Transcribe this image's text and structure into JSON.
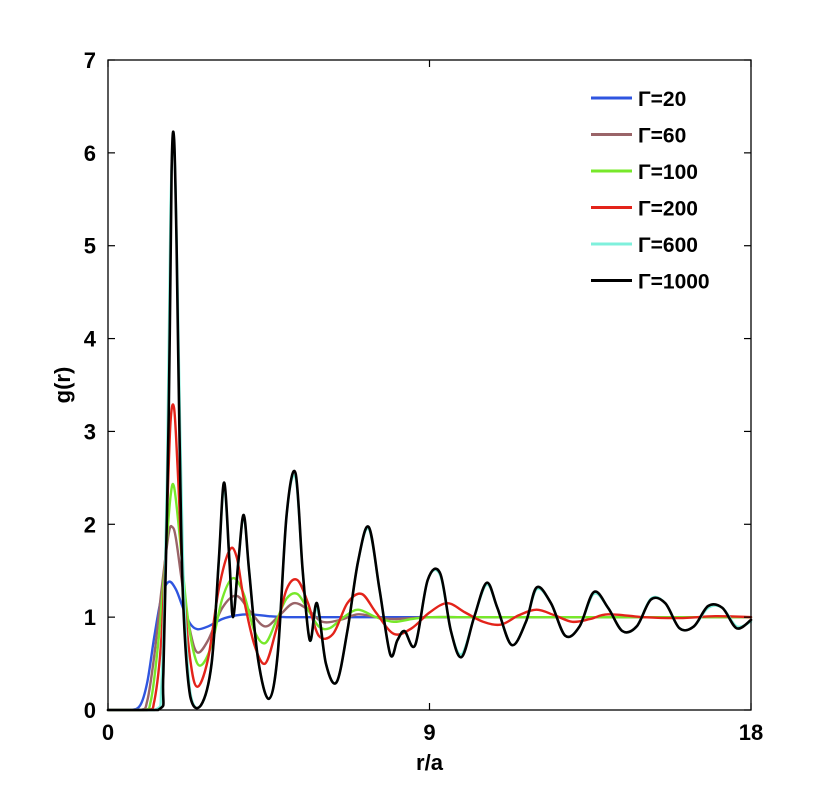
{
  "chart_data": {
    "type": "line",
    "title": "",
    "xlabel": "r/a",
    "ylabel": "g(r)",
    "xlim": [
      0,
      18
    ],
    "ylim": [
      0,
      7
    ],
    "xticks": [
      0,
      9,
      18
    ],
    "yticks": [
      0,
      1,
      2,
      3,
      4,
      5,
      6,
      7
    ],
    "grid": false,
    "legend_position": "top-right",
    "series": [
      {
        "name": "Γ=20",
        "color": "#2f55e0",
        "x": [
          0,
          0.6,
          0.9,
          1.1,
          1.3,
          1.5,
          1.7,
          1.9,
          2.1,
          2.3,
          2.5,
          2.8,
          3.2,
          3.6,
          4.0,
          4.5,
          5.0,
          6.0,
          7.0,
          9.0,
          12.0,
          15.0,
          18.0
        ],
        "y": [
          0,
          0,
          0.05,
          0.3,
          0.8,
          1.22,
          1.38,
          1.3,
          1.1,
          0.93,
          0.87,
          0.9,
          0.98,
          1.02,
          1.03,
          1.01,
          1.0,
          1.0,
          1.0,
          1.0,
          1.0,
          1.0,
          1.0
        ]
      },
      {
        "name": "Γ=60",
        "color": "#9a6468",
        "x": [
          0,
          0.9,
          1.1,
          1.3,
          1.5,
          1.7,
          1.8,
          1.9,
          2.1,
          2.3,
          2.5,
          2.8,
          3.2,
          3.6,
          4.0,
          4.4,
          4.8,
          5.2,
          5.6,
          6.0,
          6.5,
          7.0,
          7.5,
          8.0,
          9.0,
          10.0,
          12.0,
          15.0,
          18.0
        ],
        "y": [
          0,
          0,
          0.1,
          0.6,
          1.3,
          1.9,
          1.97,
          1.85,
          1.3,
          0.85,
          0.62,
          0.75,
          1.1,
          1.23,
          1.05,
          0.9,
          1.02,
          1.15,
          1.08,
          0.95,
          0.97,
          1.03,
          1.0,
          0.98,
          1.0,
          1.0,
          1.0,
          1.0,
          1.0
        ]
      },
      {
        "name": "Γ=100",
        "color": "#77e82a",
        "x": [
          0,
          1.0,
          1.2,
          1.4,
          1.6,
          1.75,
          1.85,
          2.0,
          2.2,
          2.4,
          2.6,
          2.9,
          3.2,
          3.5,
          3.8,
          4.1,
          4.4,
          4.7,
          5.0,
          5.3,
          5.6,
          5.9,
          6.2,
          6.6,
          7.0,
          7.5,
          8.0,
          8.5,
          9.0,
          10.0,
          12.0,
          15.0,
          18.0
        ],
        "y": [
          0,
          0,
          0.1,
          0.7,
          1.6,
          2.3,
          2.4,
          1.9,
          1.1,
          0.62,
          0.48,
          0.7,
          1.2,
          1.42,
          1.25,
          0.85,
          0.72,
          0.95,
          1.2,
          1.25,
          1.08,
          0.9,
          0.88,
          1.0,
          1.08,
          1.0,
          0.95,
          0.98,
          1.0,
          1.0,
          1.0,
          1.0,
          1.0
        ]
      },
      {
        "name": "Γ=200",
        "color": "#e3231a",
        "x": [
          0,
          1.1,
          1.3,
          1.5,
          1.65,
          1.75,
          1.85,
          1.95,
          2.1,
          2.3,
          2.5,
          2.8,
          3.1,
          3.4,
          3.6,
          3.8,
          4.1,
          4.4,
          4.7,
          5.0,
          5.3,
          5.6,
          5.9,
          6.3,
          6.7,
          7.1,
          7.5,
          8.0,
          8.5,
          9.0,
          9.5,
          10.0,
          10.5,
          11.0,
          11.5,
          12.0,
          12.5,
          13.0,
          13.5,
          14.0,
          15.0,
          16.0,
          17.0,
          18.0
        ],
        "y": [
          0,
          0,
          0.1,
          0.8,
          2.1,
          3.1,
          3.25,
          2.6,
          1.4,
          0.55,
          0.25,
          0.55,
          1.3,
          1.72,
          1.65,
          1.2,
          0.7,
          0.5,
          0.85,
          1.3,
          1.4,
          1.15,
          0.8,
          0.82,
          1.15,
          1.25,
          1.05,
          0.82,
          0.88,
          1.05,
          1.15,
          1.05,
          0.95,
          0.92,
          1.02,
          1.08,
          1.02,
          0.95,
          0.98,
          1.03,
          1.0,
          0.99,
          1.01,
          1.0
        ]
      },
      {
        "name": "Γ=600",
        "color": "#7ff0dc",
        "x": [
          0,
          1.3,
          1.5,
          1.65,
          1.75,
          1.85,
          1.95,
          2.1,
          2.3,
          2.6,
          2.9,
          3.1,
          3.25,
          3.4,
          3.5,
          3.65,
          3.8,
          3.95,
          4.2,
          4.5,
          4.75,
          5.0,
          5.25,
          5.45,
          5.65,
          5.85,
          6.1,
          6.4,
          6.7,
          7.0,
          7.3,
          7.6,
          7.9,
          8.1,
          8.3,
          8.6,
          8.95,
          9.3,
          9.6,
          9.9,
          10.25,
          10.6,
          10.9,
          11.3,
          11.7,
          12.0,
          12.4,
          12.8,
          13.2,
          13.6,
          14.0,
          14.4,
          14.8,
          15.2,
          15.6,
          16.0,
          16.4,
          16.8,
          17.2,
          17.6,
          18.0
        ],
        "y": [
          0,
          0,
          0.3,
          2.5,
          5.4,
          6.1,
          4.5,
          1.6,
          0.2,
          0.05,
          0.5,
          1.6,
          2.4,
          1.6,
          1.0,
          1.6,
          2.08,
          1.5,
          0.55,
          0.12,
          0.6,
          2.1,
          2.5,
          1.5,
          0.75,
          1.1,
          0.5,
          0.3,
          0.85,
          1.6,
          1.95,
          1.3,
          0.6,
          0.75,
          0.85,
          0.7,
          1.4,
          1.45,
          0.85,
          0.6,
          1.0,
          1.35,
          1.1,
          0.7,
          0.95,
          1.3,
          1.15,
          0.8,
          0.9,
          1.25,
          1.1,
          0.85,
          0.9,
          1.2,
          1.15,
          0.88,
          0.9,
          1.1,
          1.1,
          0.9,
          0.95
        ]
      },
      {
        "name": "Γ=1000",
        "color": "#000000",
        "x": [
          0,
          1.4,
          1.55,
          1.7,
          1.78,
          1.85,
          1.92,
          2.0,
          2.1,
          2.3,
          2.6,
          2.9,
          3.1,
          3.25,
          3.4,
          3.5,
          3.65,
          3.8,
          3.95,
          4.2,
          4.5,
          4.75,
          5.0,
          5.25,
          5.45,
          5.65,
          5.85,
          6.1,
          6.4,
          6.7,
          7.0,
          7.3,
          7.6,
          7.9,
          8.1,
          8.3,
          8.6,
          8.95,
          9.3,
          9.6,
          9.9,
          10.25,
          10.6,
          10.9,
          11.3,
          11.7,
          12.0,
          12.4,
          12.8,
          13.2,
          13.6,
          14.0,
          14.4,
          14.8,
          15.2,
          15.6,
          16.0,
          16.4,
          16.8,
          17.2,
          17.6,
          18.0
        ],
        "y": [
          0,
          0,
          0.4,
          3.2,
          5.8,
          6.15,
          5.0,
          3.0,
          1.2,
          0.15,
          0.05,
          0.5,
          1.6,
          2.45,
          1.6,
          1.0,
          1.6,
          2.1,
          1.5,
          0.55,
          0.12,
          0.6,
          2.1,
          2.55,
          1.5,
          0.75,
          1.15,
          0.5,
          0.3,
          0.85,
          1.6,
          1.97,
          1.3,
          0.6,
          0.75,
          0.85,
          0.7,
          1.4,
          1.47,
          0.85,
          0.57,
          1.0,
          1.37,
          1.1,
          0.7,
          0.95,
          1.32,
          1.15,
          0.8,
          0.9,
          1.27,
          1.1,
          0.85,
          0.9,
          1.19,
          1.15,
          0.88,
          0.9,
          1.12,
          1.1,
          0.88,
          0.97
        ]
      }
    ]
  }
}
